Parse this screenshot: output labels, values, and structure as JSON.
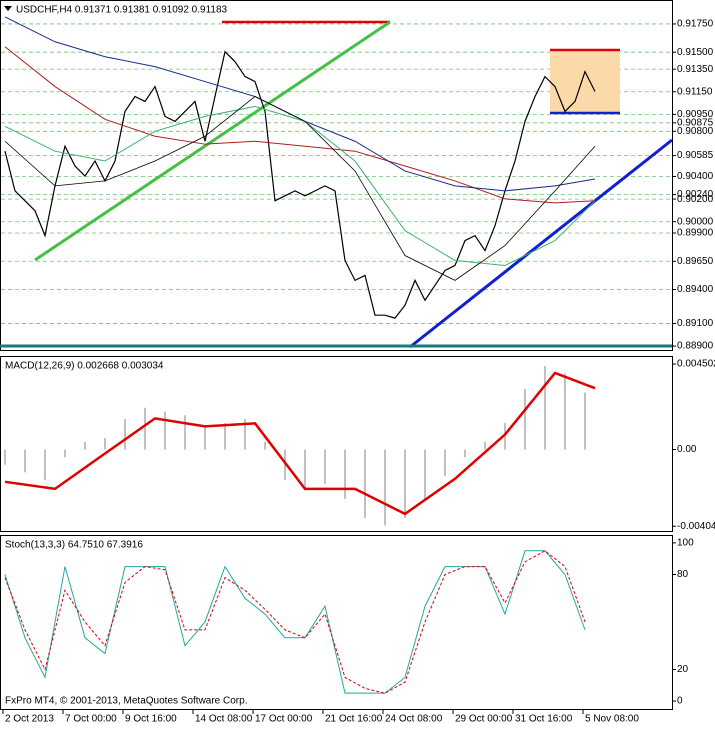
{
  "chart_data": [
    {
      "type": "line",
      "title": "USDCHF,H4  0.91371 0.91381 0.91092 0.91183",
      "ylim": [
        0.88865,
        0.91944
      ],
      "grid": true,
      "yticks": [
        {
          "value": 0.9175,
          "label": "0.91750"
        },
        {
          "value": 0.915,
          "label": "0.91500"
        },
        {
          "value": 0.9135,
          "label": "0.91350"
        },
        {
          "value": 0.9115,
          "label": "0.91150"
        },
        {
          "value": 0.9095,
          "label": "0.90950"
        },
        0.90875,
        {
          "value": 0.908,
          "label": "0.90800"
        },
        0.90585,
        {
          "value": 0.904,
          "label": "0.90400"
        },
        {
          "value": 0.9024,
          "label": "0.90240"
        },
        {
          "value": 0.902,
          "label": "0.90200"
        },
        {
          "value": 0.9,
          "label": "0.90000"
        },
        {
          "value": 0.899,
          "label": "0.89900"
        },
        {
          "value": 0.8965,
          "label": "0.89650"
        },
        {
          "value": 0.894,
          "label": "0.89400"
        },
        {
          "value": 0.891,
          "label": "0.89100"
        },
        {
          "value": 0.889,
          "label": "0.88900"
        }
      ],
      "series": [
        {
          "color": "#000000",
          "style": "line",
          "width": 1.2,
          "values": [
            0.90624,
            0.90273,
            0.90185,
            0.90097,
            0.89877,
            0.90317,
            0.90668,
            0.90493,
            0.90404,
            0.90537,
            0.90361,
            0.90537,
            0.90976,
            0.91108,
            0.91064,
            0.91196,
            0.90932,
            0.90888,
            0.90976,
            0.91064,
            0.90712,
            0.91108,
            0.91504,
            0.91416,
            0.91284,
            0.9124,
            0.90976,
            0.90185,
            0.90229,
            0.90273,
            0.90229,
            0.90273,
            0.90317,
            0.90273,
            0.89657,
            0.89481,
            0.89525,
            0.89173,
            0.89173,
            0.89147,
            0.89261,
            0.89481,
            0.89305,
            0.89437,
            0.89569,
            0.89613,
            0.89833,
            0.89877,
            0.89745,
            0.89965,
            0.90273,
            0.90537,
            0.90888,
            0.91108,
            0.91284,
            0.91196,
            0.90976,
            0.91064,
            0.91328,
            0.91152
          ]
        },
        {
          "color": "#b01e1e",
          "style": "line",
          "width": 1,
          "x": [
            0,
            5,
            10,
            15,
            20,
            25,
            30,
            35,
            40,
            45,
            50,
            55,
            59
          ],
          "values": [
            0.91548,
            0.91196,
            0.90906,
            0.90756,
            0.90686,
            0.90712,
            0.90668,
            0.90624,
            0.90493,
            0.90361,
            0.90202,
            0.90167,
            0.90185
          ]
        },
        {
          "color": "#1c2a8c",
          "style": "line",
          "width": 1,
          "x": [
            0,
            5,
            10,
            15,
            20,
            25,
            30,
            35,
            40,
            45,
            50,
            55,
            59
          ],
          "values": [
            0.91812,
            0.91592,
            0.9146,
            0.91372,
            0.9124,
            0.91108,
            0.90888,
            0.90712,
            0.90449,
            0.90317,
            0.90273,
            0.90317,
            0.90378
          ]
        },
        {
          "color": "#3cb371",
          "style": "line",
          "width": 1,
          "x": [
            0,
            5,
            10,
            15,
            20,
            25,
            30,
            35,
            40,
            45,
            50,
            55,
            59
          ],
          "values": [
            0.90844,
            0.90624,
            0.90537,
            0.908,
            0.90932,
            0.9102,
            0.90888,
            0.90537,
            0.89921,
            0.89657,
            0.89613,
            0.89833,
            0.90185
          ]
        },
        {
          "color": "#000000",
          "style": "line",
          "width": 0.8,
          "x": [
            0,
            5,
            10,
            15,
            20,
            25,
            30,
            35,
            40,
            45,
            50,
            55,
            59
          ],
          "values": [
            0.90712,
            0.90317,
            0.90361,
            0.90537,
            0.90756,
            0.91108,
            0.90888,
            0.90449,
            0.89701,
            0.89481,
            0.89789,
            0.90273,
            0.90668
          ]
        }
      ]
    },
    {
      "type": "bar",
      "title": "MACD(12,26,9) 0.002668 0.003034",
      "ylim": [
        -0.00429,
        0.00482
      ],
      "grid": false,
      "yticks": [
        0.004502,
        {
          "value": 0,
          "label": "0.00"
        },
        -0.00404
      ],
      "x": [
        0,
        2,
        4,
        6,
        8,
        10,
        12,
        14,
        16,
        18,
        20,
        22,
        24,
        26,
        28,
        30,
        32,
        34,
        36,
        38,
        40,
        42,
        44,
        46,
        48,
        50,
        52,
        54,
        56,
        58
      ],
      "series": [
        {
          "color": "#c0c0c0",
          "style": "bar",
          "values": [
            -0.0008,
            -0.0012,
            -0.0016,
            -0.0004,
            0.0004,
            0.0006,
            0.0016,
            0.0022,
            0.002,
            0.0018,
            0.0012,
            0.0014,
            0.0016,
            0.0004,
            -0.0016,
            -0.002,
            -0.0018,
            -0.0026,
            -0.0036,
            -0.004,
            -0.0036,
            -0.0026,
            -0.0014,
            -0.0004,
            0.0004,
            0.0014,
            0.0032,
            0.0044,
            0.004,
            0.003
          ]
        },
        {
          "color": "#e00000",
          "style": "line",
          "width": 2.5,
          "x": [
            0,
            5,
            10,
            15,
            20,
            25,
            30,
            35,
            40,
            45,
            50,
            55,
            59
          ],
          "values": [
            -0.0017,
            -0.00207,
            -0.00021,
            0.00164,
            0.00122,
            0.00138,
            -0.00207,
            -0.00207,
            -0.00339,
            -0.00154,
            0.00079,
            0.00403,
            0.00323
          ]
        }
      ]
    },
    {
      "type": "line",
      "title": "Stoch(13,3,3) 64.7510 67.3916",
      "annotation": "FxPro MT4, © 2001-2013, MetaQuotes Software Corp.",
      "ylim": [
        -5,
        103.7
      ],
      "grid": false,
      "yticks": [
        100,
        80,
        20,
        0
      ],
      "x": [
        0,
        2,
        4,
        6,
        8,
        10,
        12,
        14,
        16,
        18,
        20,
        22,
        24,
        26,
        28,
        30,
        32,
        34,
        36,
        38,
        40,
        42,
        44,
        46,
        48,
        50,
        52,
        54,
        56,
        58
      ],
      "xticks": [
        {
          "value": 0,
          "label": "2 Oct 2013"
        },
        {
          "value": 6,
          "label": "7 Oct 00:00"
        },
        {
          "value": 12,
          "label": "9 Oct 16:00"
        },
        {
          "value": 19,
          "label": "14 Oct 08:00"
        },
        {
          "value": 25,
          "label": "17 Oct 00:00"
        },
        {
          "value": 32,
          "label": "21 Oct 16:00"
        },
        {
          "value": 38,
          "label": "24 Oct 08:00"
        },
        {
          "value": 45,
          "label": "29 Oct 00:00"
        },
        {
          "value": 51,
          "label": "31 Oct 16:00"
        },
        {
          "value": 58,
          "label": "5 Nov 08:00"
        }
      ],
      "series": [
        {
          "color": "#20a8a0",
          "style": "line",
          "width": 1,
          "values": [
            80,
            40,
            15,
            85,
            40,
            30,
            85,
            85,
            85,
            35,
            50,
            85,
            65,
            55,
            40,
            40,
            60,
            5,
            5,
            5,
            15,
            60,
            85,
            85,
            85,
            55,
            95,
            95,
            80,
            45
          ]
        },
        {
          "color": "#e00000",
          "style": "dashed",
          "width": 1,
          "values": [
            78,
            45,
            20,
            70,
            50,
            35,
            75,
            85,
            83,
            45,
            45,
            78,
            70,
            58,
            45,
            40,
            55,
            15,
            8,
            5,
            12,
            50,
            80,
            85,
            85,
            62,
            88,
            95,
            85,
            50
          ]
        }
      ]
    }
  ]
}
